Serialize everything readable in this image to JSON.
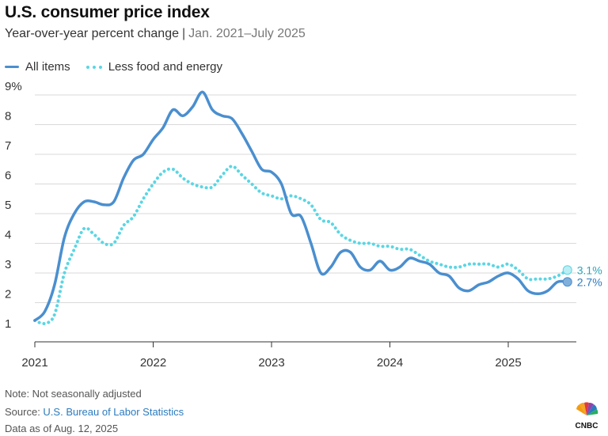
{
  "header": {
    "title": "U.S. consumer price index",
    "subtitle_main": "Year-over-year percent change",
    "subtitle_separator": "|",
    "subtitle_range": "Jan. 2021–July 2025"
  },
  "colors": {
    "all_items": "#4a8fcf",
    "core": "#5ad6e4",
    "grid": "#d9d9d9",
    "axis": "#333333"
  },
  "chart_data": {
    "type": "line",
    "title": "U.S. consumer price index",
    "subtitle": "Year-over-year percent change | Jan. 2021–July 2025",
    "xlabel": "",
    "ylabel": "",
    "ylim": [
      1,
      9
    ],
    "y_ticks": [
      "1",
      "2",
      "3",
      "4",
      "5",
      "6",
      "7",
      "8",
      "9%"
    ],
    "x_ticks": [
      "2021",
      "2022",
      "2023",
      "2024",
      "2025"
    ],
    "grid": true,
    "legend_position": "top-left",
    "x": [
      "2021-01",
      "2021-02",
      "2021-03",
      "2021-04",
      "2021-05",
      "2021-06",
      "2021-07",
      "2021-08",
      "2021-09",
      "2021-10",
      "2021-11",
      "2021-12",
      "2022-01",
      "2022-02",
      "2022-03",
      "2022-04",
      "2022-05",
      "2022-06",
      "2022-07",
      "2022-08",
      "2022-09",
      "2022-10",
      "2022-11",
      "2022-12",
      "2023-01",
      "2023-02",
      "2023-03",
      "2023-04",
      "2023-05",
      "2023-06",
      "2023-07",
      "2023-08",
      "2023-09",
      "2023-10",
      "2023-11",
      "2023-12",
      "2024-01",
      "2024-02",
      "2024-03",
      "2024-04",
      "2024-05",
      "2024-06",
      "2024-07",
      "2024-08",
      "2024-09",
      "2024-10",
      "2024-11",
      "2024-12",
      "2025-01",
      "2025-02",
      "2025-03",
      "2025-04",
      "2025-05",
      "2025-06",
      "2025-07"
    ],
    "series": [
      {
        "name": "All items",
        "style": "solid",
        "values": [
          1.4,
          1.7,
          2.6,
          4.2,
          5.0,
          5.4,
          5.4,
          5.3,
          5.4,
          6.2,
          6.8,
          7.0,
          7.5,
          7.9,
          8.5,
          8.3,
          8.6,
          9.1,
          8.5,
          8.3,
          8.2,
          7.7,
          7.1,
          6.5,
          6.4,
          6.0,
          5.0,
          4.9,
          4.0,
          3.0,
          3.2,
          3.7,
          3.7,
          3.2,
          3.1,
          3.4,
          3.1,
          3.2,
          3.5,
          3.4,
          3.3,
          3.0,
          2.9,
          2.5,
          2.4,
          2.6,
          2.7,
          2.9,
          3.0,
          2.8,
          2.4,
          2.3,
          2.4,
          2.7,
          2.7
        ]
      },
      {
        "name": "Less food and energy",
        "style": "dotted",
        "values": [
          1.4,
          1.3,
          1.6,
          3.0,
          3.8,
          4.5,
          4.3,
          4.0,
          4.0,
          4.6,
          4.9,
          5.5,
          6.0,
          6.4,
          6.5,
          6.2,
          6.0,
          5.9,
          5.9,
          6.3,
          6.6,
          6.3,
          6.0,
          5.7,
          5.6,
          5.5,
          5.6,
          5.5,
          5.3,
          4.8,
          4.7,
          4.3,
          4.1,
          4.0,
          4.0,
          3.9,
          3.9,
          3.8,
          3.8,
          3.6,
          3.4,
          3.3,
          3.2,
          3.2,
          3.3,
          3.3,
          3.3,
          3.2,
          3.3,
          3.1,
          2.8,
          2.8,
          2.8,
          2.9,
          3.1
        ]
      }
    ],
    "end_labels": [
      "3.1%",
      "2.7%"
    ]
  },
  "footer": {
    "note": "Note: Not seasonally adjusted",
    "source_prefix": "Source: ",
    "source_link": "U.S. Bureau of Labor Statistics",
    "date": "Data as of Aug. 12, 2025"
  }
}
